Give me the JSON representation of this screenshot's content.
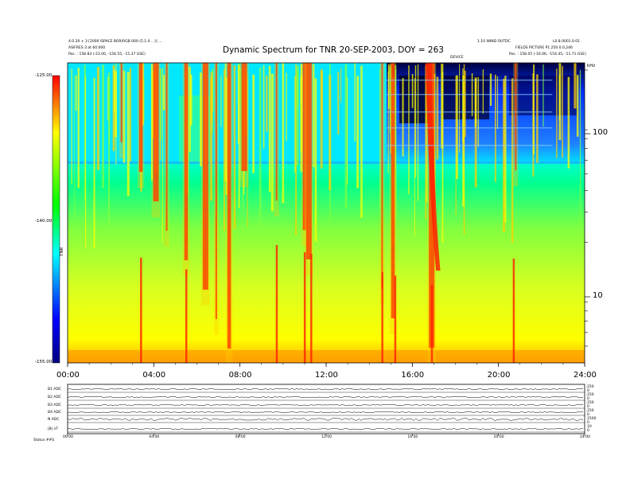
{
  "header": {
    "title": "Dynamic Spectrum for TNR 20-SEP-2003, DOY = 263",
    "left_line1": "4.0.20 + 3 [2000 ISPACE BOR/RGB 000 (5.1.0 ...)] ...",
    "left_line2": "ASIFRES 3 at 60.000",
    "left_line3": "Pos. : 158.83 (-23.00, -156.55, -11.37 GSE)",
    "right_line1": "1.10 WIND OUTDC",
    "right_line2": "L0.8.0001.0.01",
    "right_line3": "FIELDS PICTURE P1 250 0.0,246",
    "right_line4": "Pos. : 158.05 (-16.06, -154.45, -11.71 GSE)",
    "center_tag": "DEVICE"
  },
  "colorbar": {
    "top_label": "-125.00",
    "mid_label": "-140.00",
    "bottom_label": "-155.00",
    "axis_label": "TNR"
  },
  "right_axis": {
    "unit": "kHz",
    "ticks": [
      "100",
      "10"
    ]
  },
  "chart_data": {
    "type": "heatmap",
    "title": "Dynamic Spectrum for TNR 20-SEP-2003, DOY = 263",
    "x_ticks": [
      "00:00",
      "04:00",
      "08:00",
      "12:00",
      "16:00",
      "20:00",
      "24:00"
    ],
    "xlim_hours": [
      0,
      24
    ],
    "y_scale": "log",
    "ylim_khz": [
      4,
      220
    ],
    "y_ticks_khz": [
      10,
      100
    ],
    "color_scale": {
      "min": -155.0,
      "max": -125.0,
      "mid": -140.0,
      "colors": [
        "#000080",
        "#0000ff",
        "#00ffff",
        "#00ff00",
        "#ffff00",
        "#ff0000"
      ]
    },
    "bright_bursts_hours": [
      2.5,
      3.4,
      4.1,
      4.6,
      5.5,
      6.4,
      6.9,
      7.5,
      8.2,
      9.7,
      11.0,
      11.2,
      14.6,
      15.1,
      16.9,
      20.8
    ],
    "quiet_interval_hours": [
      14.8,
      22.5
    ]
  },
  "panels": {
    "left_labels": [
      "B1 ADC",
      "B2 ADC",
      "B3 ADC",
      "B4 ADC",
      "N ADC",
      "|B| nT"
    ],
    "right_labels": [
      "250",
      "0",
      "250",
      "0",
      "250",
      "0",
      "250",
      "0",
      "2500",
      "0",
      "10",
      "0"
    ],
    "x_ticks": [
      "00:00",
      "04:00",
      "08:00",
      "12:00",
      "16:00",
      "20:00",
      "24:00"
    ],
    "footer": "Status    ##S"
  }
}
